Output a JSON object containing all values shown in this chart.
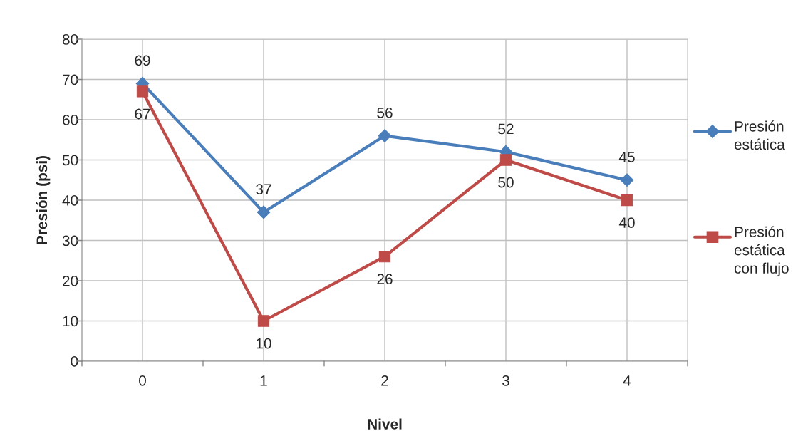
{
  "chart_data": {
    "type": "line",
    "xlabel": "Nivel",
    "ylabel": "Presión (psi)",
    "categories": [
      "0",
      "1",
      "2",
      "3",
      "4"
    ],
    "series": [
      {
        "name": "Presión estática",
        "color": "#4a7ebb",
        "marker": "diamond",
        "values": [
          69,
          37,
          56,
          52,
          45
        ]
      },
      {
        "name": "Presión estática con flujo",
        "color": "#be4b48",
        "marker": "square",
        "values": [
          67,
          10,
          26,
          50,
          40
        ]
      }
    ],
    "ylim": [
      0,
      80
    ],
    "yticks": [
      0,
      10,
      20,
      30,
      40,
      50,
      60,
      70,
      80
    ],
    "grid": true,
    "legend": "right",
    "data_labels": true,
    "line_style": "solid"
  }
}
